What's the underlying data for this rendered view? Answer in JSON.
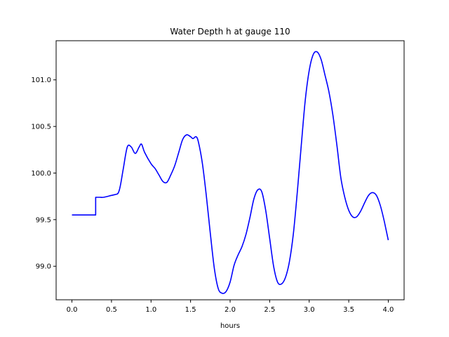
{
  "chart_data": {
    "type": "line",
    "title": "Water Depth h at gauge 110",
    "xlabel": "hours",
    "ylabel": "",
    "xlim": [
      -0.2,
      4.2
    ],
    "ylim": [
      98.64,
      101.42
    ],
    "x_ticks": [
      0.0,
      0.5,
      1.0,
      1.5,
      2.0,
      2.5,
      3.0,
      3.5,
      4.0
    ],
    "x_tick_labels": [
      "0.0",
      "0.5",
      "1.0",
      "1.5",
      "2.0",
      "2.5",
      "3.0",
      "3.5",
      "4.0"
    ],
    "y_ticks": [
      99.0,
      99.5,
      100.0,
      100.5,
      101.0
    ],
    "y_tick_labels": [
      "99.0",
      "99.5",
      "100.0",
      "100.5",
      "101.0"
    ],
    "grid": false,
    "legend": "none",
    "series": [
      {
        "color": "#0000ff",
        "x": [
          0.0,
          0.1,
          0.2,
          0.3,
          0.3,
          0.35,
          0.4,
          0.5,
          0.55,
          0.58,
          0.6,
          0.62,
          0.65,
          0.7,
          0.75,
          0.8,
          0.85,
          0.88,
          0.92,
          1.0,
          1.05,
          1.1,
          1.15,
          1.2,
          1.25,
          1.3,
          1.35,
          1.4,
          1.45,
          1.5,
          1.53,
          1.57,
          1.6,
          1.65,
          1.7,
          1.75,
          1.8,
          1.85,
          1.9,
          1.95,
          2.0,
          2.05,
          2.1,
          2.15,
          2.2,
          2.25,
          2.3,
          2.35,
          2.4,
          2.45,
          2.5,
          2.55,
          2.6,
          2.65,
          2.7,
          2.75,
          2.8,
          2.85,
          2.9,
          2.95,
          3.0,
          3.05,
          3.1,
          3.15,
          3.2,
          3.25,
          3.3,
          3.35,
          3.4,
          3.45,
          3.5,
          3.55,
          3.6,
          3.65,
          3.7,
          3.75,
          3.8,
          3.85,
          3.9,
          3.95,
          4.0
        ],
        "y": [
          99.55,
          99.55,
          99.55,
          99.55,
          99.74,
          99.74,
          99.74,
          99.76,
          99.77,
          99.78,
          99.82,
          99.9,
          100.05,
          100.28,
          100.28,
          100.21,
          100.28,
          100.31,
          100.22,
          100.1,
          100.05,
          99.98,
          99.91,
          99.9,
          99.98,
          100.08,
          100.22,
          100.36,
          100.41,
          100.39,
          100.37,
          100.39,
          100.33,
          100.1,
          99.75,
          99.35,
          98.98,
          98.76,
          98.71,
          98.73,
          98.83,
          99.01,
          99.12,
          99.21,
          99.34,
          99.52,
          99.72,
          99.82,
          99.8,
          99.6,
          99.3,
          99.0,
          98.83,
          98.81,
          98.88,
          99.05,
          99.35,
          99.8,
          100.3,
          100.78,
          101.1,
          101.27,
          101.3,
          101.22,
          101.05,
          100.87,
          100.62,
          100.3,
          99.95,
          99.74,
          99.6,
          99.53,
          99.53,
          99.59,
          99.68,
          99.76,
          99.79,
          99.76,
          99.65,
          99.48,
          99.28
        ]
      }
    ]
  }
}
